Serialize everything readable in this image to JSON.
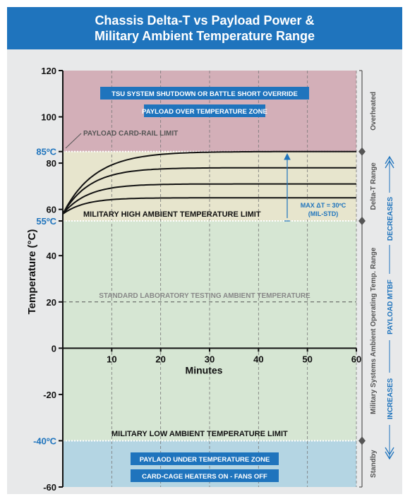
{
  "title": [
    "Chassis Delta-T vs Payload Power &",
    "Military Ambient Temperature Range"
  ],
  "colors": {
    "header": "#1f74bd",
    "overheated": "#d3afb8",
    "delta_t": "#e7e5cd",
    "operating": "#d6e6d3",
    "standby": "#b4d5e3",
    "label_box": "#1f74bd",
    "blue_text": "#1f74bd",
    "arrow": "#1f74bd"
  },
  "chart_data": {
    "type": "line",
    "xlabel": "Minutes",
    "ylabel": "Temperature (°C)",
    "xlim": [
      0,
      60
    ],
    "ylim": [
      -60,
      120
    ],
    "x_ticks": [
      "10",
      "20",
      "30",
      "40",
      "50",
      "60"
    ],
    "y_ticks": [
      "120",
      "100",
      "80",
      "60",
      "40",
      "20",
      "0",
      "-20",
      "-60"
    ],
    "y_ticks_highlight": [
      {
        "value": 85,
        "label": "85ºC"
      },
      {
        "value": 55,
        "label": "55ºC"
      },
      {
        "value": -40,
        "label": "-40ºC"
      }
    ],
    "bands": [
      {
        "name": "Overheated",
        "from": 85,
        "to": 120,
        "color_key": "overheated"
      },
      {
        "name": "Delta-T Range",
        "from": 55,
        "to": 85,
        "color_key": "delta_t"
      },
      {
        "name": "Military Systems  Ambient Operating Temp. Range",
        "from": -40,
        "to": 55,
        "color_key": "operating"
      },
      {
        "name": "Standby",
        "from": -60,
        "to": -40,
        "color_key": "standby"
      }
    ],
    "series": [
      {
        "plateau": 85,
        "tau": 6.5
      },
      {
        "plateau": 78,
        "tau": 5.5
      },
      {
        "plateau": 71,
        "tau": 5
      },
      {
        "plateau": 65,
        "tau": 4.5
      }
    ],
    "start_value": 58,
    "reference_lines": [
      {
        "value": 20,
        "label": "STANDARD LABORATORY TESTING AMBIENT TEMPERATURE",
        "style": "dashed"
      },
      {
        "value": 85,
        "style": "dotted"
      },
      {
        "value": 55,
        "style": "dotted"
      },
      {
        "value": -40,
        "style": "dotted"
      }
    ],
    "annotations": {
      "box_top_1": "TSU SYSTEM SHUTDOWN OR BATTLE SHORT OVERRIDE",
      "box_top_2": "PAYLOAD OVER TEMPERATURE ZONE",
      "payload_rail": "PAYLOAD CARD-RAIL LIMIT",
      "mil_high": "MILITARY HIGH AMBIENT TEMPERATURE LIMIT",
      "mil_low": "MILITARY LOW AMBIENT TEMPERATURE  LIMIT",
      "box_bottom_1": "PAYLAOD UNDER TEMPERATURE ZONE",
      "box_bottom_2": "CARD-CAGE HEATERS ON - FANS OFF",
      "max_dt_1": "MAX ΔT = 30ºC",
      "max_dt_2": "(MIL-STD)"
    },
    "right_axis": {
      "increases": "INCREASES",
      "decreases": "DECREASES",
      "mtbf": "PAYLOAD MTBF"
    },
    "grid_x": true,
    "grid_style": "dashed"
  }
}
